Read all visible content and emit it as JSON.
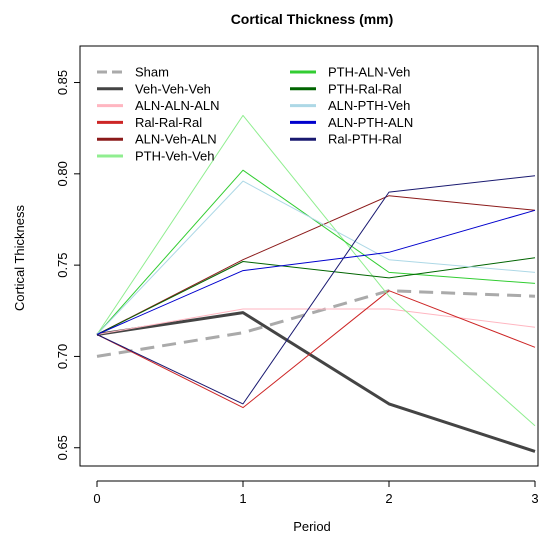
{
  "chart_data": {
    "type": "line",
    "title": "Cortical Thickness (mm)",
    "xlabel": "Period",
    "ylabel": "Cortical Thickness",
    "x": [
      0,
      1,
      2,
      3
    ],
    "xlim": [
      0,
      3
    ],
    "ylim": [
      0.64,
      0.87
    ],
    "xticks": [
      "0",
      "1",
      "2",
      "3"
    ],
    "yticks": [
      "0.65",
      "0.70",
      "0.75",
      "0.80",
      "0.85"
    ],
    "ytick_values": [
      0.65,
      0.7,
      0.75,
      0.8,
      0.85
    ],
    "grid": false,
    "legend_position": "top",
    "series": [
      {
        "name": "Sham",
        "color": "#aaaaaa",
        "width": 3,
        "dash": true,
        "values": [
          0.7,
          0.713,
          0.736,
          0.733
        ]
      },
      {
        "name": "Veh-Veh-Veh",
        "color": "#444444",
        "width": 3,
        "dash": false,
        "values": [
          0.712,
          0.724,
          0.674,
          0.648
        ]
      },
      {
        "name": "ALN-ALN-ALN",
        "color": "#ffb6c1",
        "width": 1,
        "dash": false,
        "values": [
          0.712,
          0.726,
          0.726,
          0.716
        ]
      },
      {
        "name": "Ral-Ral-Ral",
        "color": "#cd2626",
        "width": 1,
        "dash": false,
        "values": [
          0.712,
          0.672,
          0.736,
          0.705
        ]
      },
      {
        "name": "ALN-Veh-ALN",
        "color": "#8b1a1a",
        "width": 1,
        "dash": false,
        "values": [
          0.712,
          0.753,
          0.788,
          0.78
        ]
      },
      {
        "name": "PTH-Veh-Veh",
        "color": "#90ee90",
        "width": 1,
        "dash": false,
        "values": [
          0.712,
          0.832,
          0.733,
          0.662
        ]
      },
      {
        "name": "PTH-ALN-Veh",
        "color": "#32cd32",
        "width": 1,
        "dash": false,
        "values": [
          0.712,
          0.802,
          0.746,
          0.74
        ]
      },
      {
        "name": "PTH-Ral-Ral",
        "color": "#006400",
        "width": 1,
        "dash": false,
        "values": [
          0.712,
          0.752,
          0.743,
          0.754
        ]
      },
      {
        "name": "ALN-PTH-Veh",
        "color": "#add8e6",
        "width": 1,
        "dash": false,
        "values": [
          0.712,
          0.796,
          0.753,
          0.746
        ]
      },
      {
        "name": "ALN-PTH-ALN",
        "color": "#0000cd",
        "width": 1,
        "dash": false,
        "values": [
          0.712,
          0.747,
          0.757,
          0.78
        ]
      },
      {
        "name": "Ral-PTH-Ral",
        "color": "#191970",
        "width": 1,
        "dash": false,
        "values": [
          0.712,
          0.674,
          0.79,
          0.799
        ]
      }
    ]
  }
}
